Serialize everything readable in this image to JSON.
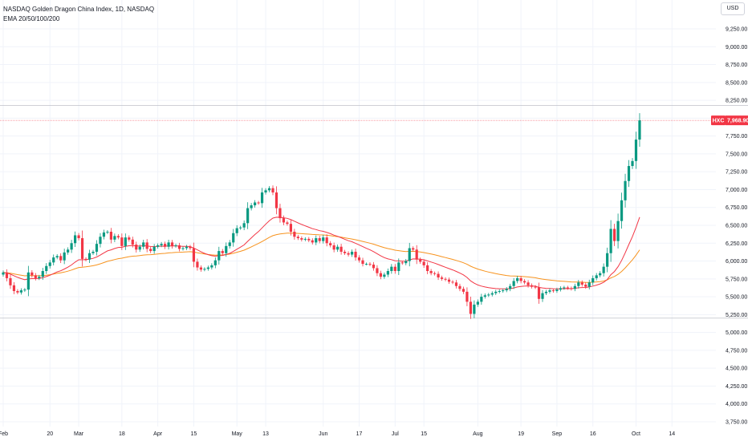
{
  "header": {
    "symbol_line": "NASDAQ Golden Dragon China Index, 1D, NASDAQ",
    "indicator_line": "EMA 20/50/100/200",
    "currency_button": "USD"
  },
  "chart_data": {
    "type": "candlestick",
    "title": "NASDAQ Golden Dragon China Index, 1D, NASDAQ",
    "ylim": [
      3750,
      9400
    ],
    "y_ticks": [
      "9,250.00",
      "9,000.00",
      "8,750.00",
      "8,500.00",
      "8,250.00",
      "8,000.00",
      "7,750.00",
      "7,500.00",
      "7,250.00",
      "7,000.00",
      "6,750.00",
      "6,500.00",
      "6,250.00",
      "6,000.00",
      "5,750.00",
      "5,500.00",
      "5,250.00",
      "5,000.00",
      "4,750.00",
      "4,500.00",
      "4,250.00",
      "4,000.00",
      "3,750.00"
    ],
    "y_tick_values": [
      9250,
      9000,
      8750,
      8500,
      8250,
      8000,
      7750,
      7500,
      7250,
      7000,
      6750,
      6500,
      6250,
      6000,
      5750,
      5500,
      5250,
      5000,
      4750,
      4500,
      4250,
      4000,
      3750
    ],
    "x_ticks": [
      {
        "label": "Feb",
        "index": 0
      },
      {
        "label": "20",
        "index": 13
      },
      {
        "label": "Mar",
        "index": 21
      },
      {
        "label": "18",
        "index": 33
      },
      {
        "label": "Apr",
        "index": 43
      },
      {
        "label": "15",
        "index": 53
      },
      {
        "label": "May",
        "index": 65
      },
      {
        "label": "13",
        "index": 73
      },
      {
        "label": "Jun",
        "index": 89
      },
      {
        "label": "17",
        "index": 99
      },
      {
        "label": "Jul",
        "index": 109
      },
      {
        "label": "15",
        "index": 117
      },
      {
        "label": "Aug",
        "index": 132
      },
      {
        "label": "19",
        "index": 144
      },
      {
        "label": "Sep",
        "index": 154
      },
      {
        "label": "16",
        "index": 164
      },
      {
        "label": "Oct",
        "index": 176
      },
      {
        "label": "14",
        "index": 186
      }
    ],
    "current_price": {
      "label": "HXC",
      "value": 7968.9,
      "value_text": "7,968.90"
    },
    "series_name": "NASDAQ Golden Dragon China Index",
    "closes": [
      5840,
      5760,
      5660,
      5580,
      5560,
      5590,
      5600,
      5840,
      5800,
      5760,
      5780,
      5860,
      5930,
      5980,
      6050,
      6070,
      6010,
      6120,
      6160,
      6250,
      6360,
      6320,
      6030,
      6020,
      6110,
      6130,
      6240,
      6340,
      6400,
      6410,
      6300,
      6350,
      6330,
      6210,
      6330,
      6300,
      6230,
      6160,
      6200,
      6260,
      6170,
      6140,
      6200,
      6220,
      6240,
      6200,
      6260,
      6210,
      6220,
      6170,
      6180,
      6200,
      6180,
      5990,
      5910,
      5880,
      5890,
      5910,
      5940,
      6010,
      6140,
      6110,
      6210,
      6260,
      6390,
      6460,
      6470,
      6530,
      6740,
      6780,
      6820,
      6810,
      6960,
      6990,
      7020,
      6960,
      6740,
      6600,
      6540,
      6520,
      6410,
      6340,
      6320,
      6300,
      6310,
      6290,
      6260,
      6320,
      6280,
      6330,
      6250,
      6220,
      6160,
      6200,
      6130,
      6110,
      6090,
      6130,
      6050,
      6010,
      5960,
      5960,
      5950,
      5900,
      5830,
      5780,
      5810,
      5860,
      5920,
      5860,
      5980,
      5970,
      6000,
      6180,
      6160,
      6020,
      5990,
      5940,
      5860,
      5830,
      5820,
      5770,
      5750,
      5740,
      5710,
      5700,
      5650,
      5610,
      5570,
      5430,
      5260,
      5390,
      5430,
      5500,
      5520,
      5530,
      5550,
      5570,
      5580,
      5590,
      5610,
      5650,
      5720,
      5760,
      5720,
      5700,
      5660,
      5640,
      5630,
      5470,
      5550,
      5570,
      5590,
      5580,
      5600,
      5620,
      5630,
      5620,
      5610,
      5650,
      5700,
      5670,
      5640,
      5700,
      5760,
      5800,
      5830,
      5920,
      6110,
      6450,
      6280,
      6560,
      6850,
      7120,
      7330,
      7400,
      7700,
      7968.9
    ],
    "ema_20_last": 6450,
    "ema_50_last": 6050
  }
}
